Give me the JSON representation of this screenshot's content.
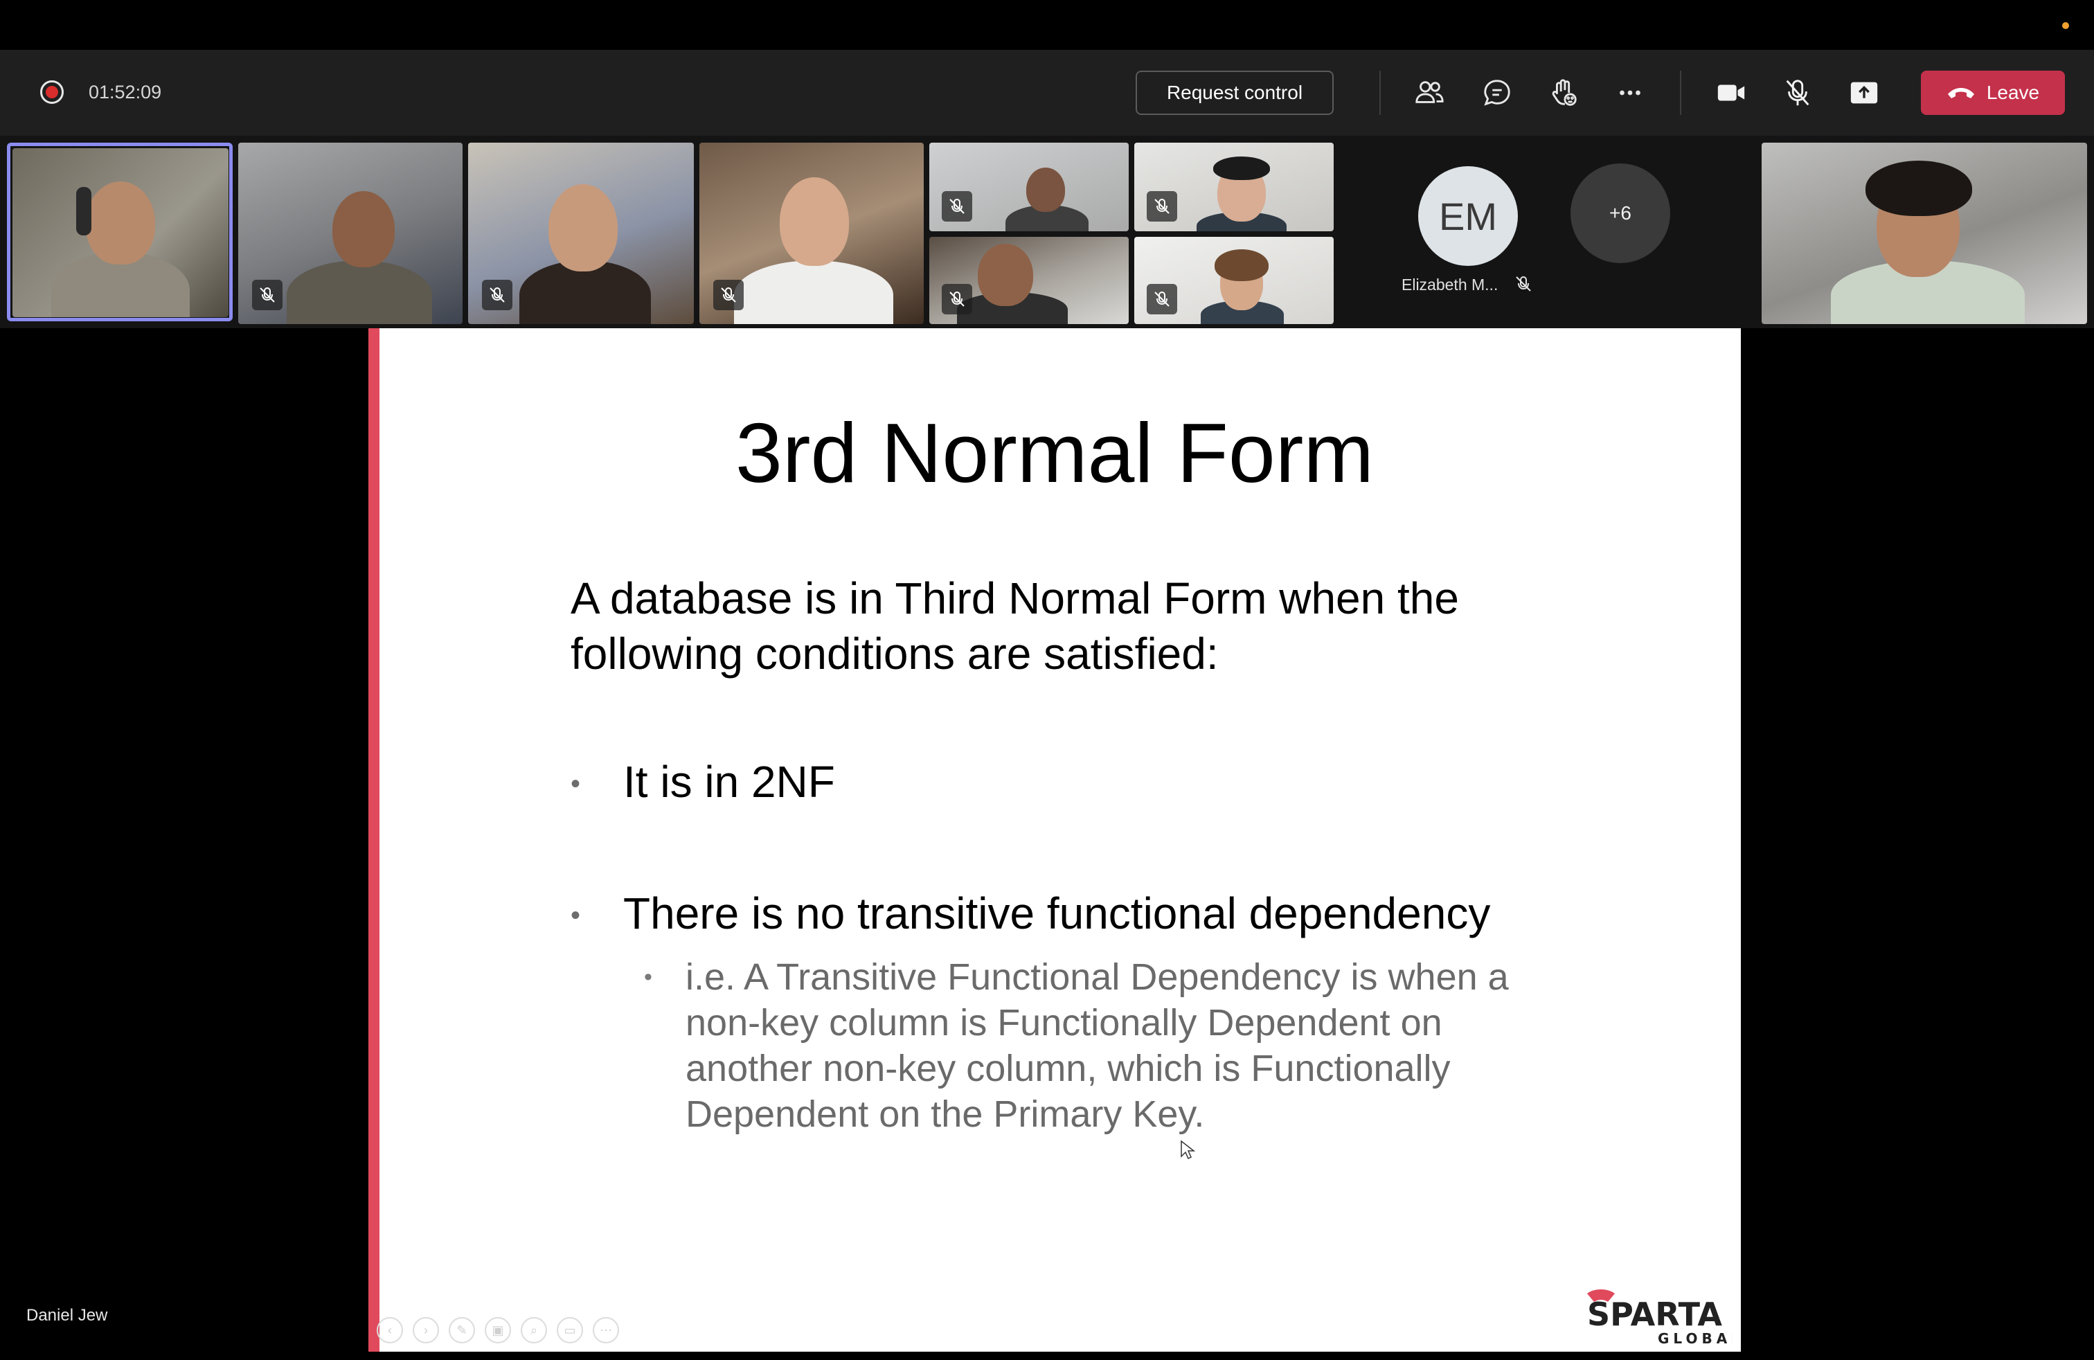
{
  "colors": {
    "record": "#d92c2c",
    "leave": "#c4314b",
    "active_speaker": "#8b8cf0",
    "slide_accent": "#e04a5c",
    "notify_dot": "#f0a030"
  },
  "meeting": {
    "elapsed": "01:52:09",
    "request_control_label": "Request control",
    "leave_label": "Leave",
    "toolbar_icons": [
      "participants-icon",
      "chat-icon",
      "raise-hand-icon",
      "more-icon",
      "camera-icon",
      "mic-off-icon",
      "share-icon"
    ]
  },
  "participants": {
    "avatar_initials": "EM",
    "avatar_name": "Elizabeth M...",
    "overflow_count": "+6"
  },
  "presenter": {
    "name": "Daniel Jew"
  },
  "slide": {
    "title": "3rd Normal Form",
    "intro": "A database is in Third Normal Form when the following conditions are satisfied:",
    "bullets": [
      "It is in 2NF",
      "There is no transitive functional dependency"
    ],
    "sub_bullet": "i.e. A Transitive Functional Dependency is when a non-key column is Functionally Dependent on another non-key column, which is Functionally Dependent on the Primary Key.",
    "bullet_marker": "•",
    "logo_text": "SPARTA",
    "logo_subtext": "GLOBAL"
  }
}
